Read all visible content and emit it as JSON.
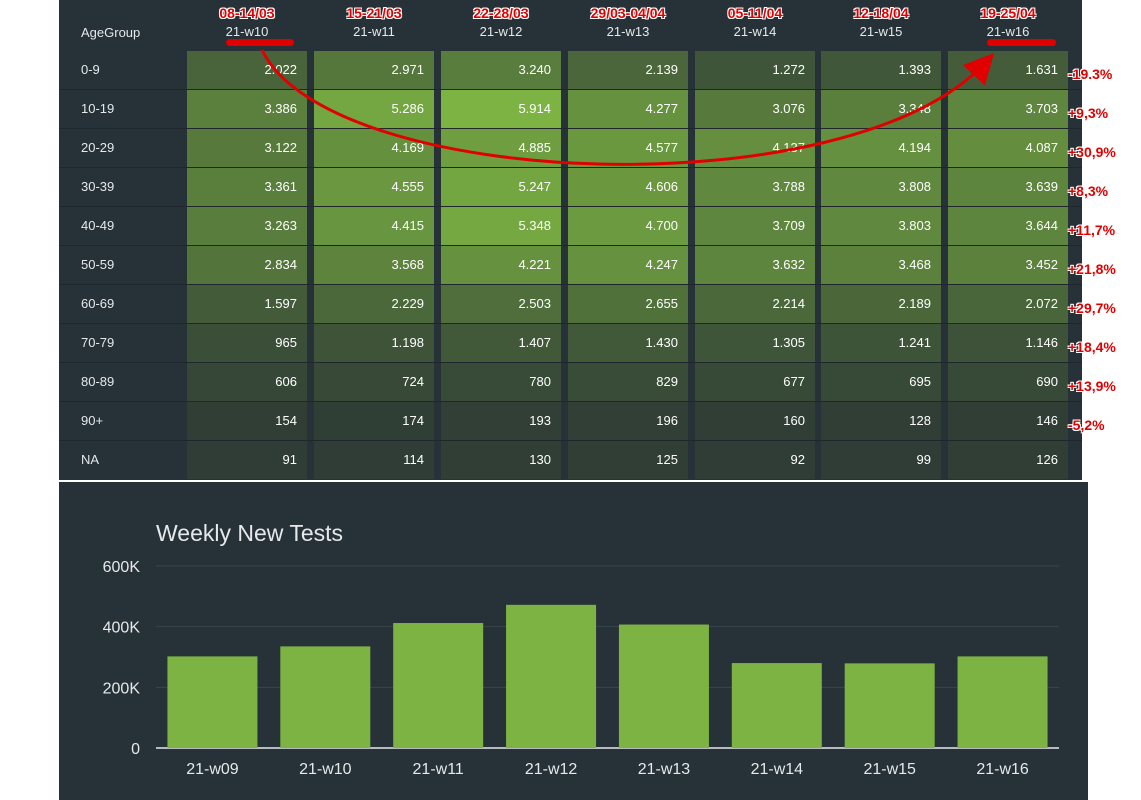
{
  "table": {
    "corner_label": "AgeGroup",
    "columns": [
      "21-w10",
      "21-w11",
      "21-w12",
      "21-w13",
      "21-w14",
      "21-w15",
      "21-w16"
    ],
    "date_annotations": [
      "08-14/03",
      "15-21/03",
      "22-28/03",
      "29/03-04/04",
      "05-11/04",
      "12-18/04",
      "19-25/04"
    ],
    "rows": [
      {
        "label": "0-9",
        "cells": [
          "2.022",
          "2.971",
          "3.240",
          "2.139",
          "1.272",
          "1.393",
          "1.631"
        ],
        "values": [
          2022,
          2971,
          3240,
          2139,
          1272,
          1393,
          1631
        ],
        "change": "-19.3%"
      },
      {
        "label": "10-19",
        "cells": [
          "3.386",
          "5.286",
          "5.914",
          "4.277",
          "3.076",
          "3.348",
          "3.703"
        ],
        "values": [
          3386,
          5286,
          5914,
          4277,
          3076,
          3348,
          3703
        ],
        "change": "+9,3%"
      },
      {
        "label": "20-29",
        "cells": [
          "3.122",
          "4.169",
          "4.885",
          "4.577",
          "4.137",
          "4.194",
          "4.087"
        ],
        "values": [
          3122,
          4169,
          4885,
          4577,
          4137,
          4194,
          4087
        ],
        "change": "+30,9%"
      },
      {
        "label": "30-39",
        "cells": [
          "3.361",
          "4.555",
          "5.247",
          "4.606",
          "3.788",
          "3.808",
          "3.639"
        ],
        "values": [
          3361,
          4555,
          5247,
          4606,
          3788,
          3808,
          3639
        ],
        "change": "+8,3%"
      },
      {
        "label": "40-49",
        "cells": [
          "3.263",
          "4.415",
          "5.348",
          "4.700",
          "3.709",
          "3.803",
          "3.644"
        ],
        "values": [
          3263,
          4415,
          5348,
          4700,
          3709,
          3803,
          3644
        ],
        "change": "+11,7%"
      },
      {
        "label": "50-59",
        "cells": [
          "2.834",
          "3.568",
          "4.221",
          "4.247",
          "3.632",
          "3.468",
          "3.452"
        ],
        "values": [
          2834,
          3568,
          4221,
          4247,
          3632,
          3468,
          3452
        ],
        "change": "+21,8%"
      },
      {
        "label": "60-69",
        "cells": [
          "1.597",
          "2.229",
          "2.503",
          "2.655",
          "2.214",
          "2.189",
          "2.072"
        ],
        "values": [
          1597,
          2229,
          2503,
          2655,
          2214,
          2189,
          2072
        ],
        "change": "+29,7%"
      },
      {
        "label": "70-79",
        "cells": [
          "965",
          "1.198",
          "1.407",
          "1.430",
          "1.305",
          "1.241",
          "1.146"
        ],
        "values": [
          965,
          1198,
          1407,
          1430,
          1305,
          1241,
          1146
        ],
        "change": "+18,4%"
      },
      {
        "label": "80-89",
        "cells": [
          "606",
          "724",
          "780",
          "829",
          "677",
          "695",
          "690"
        ],
        "values": [
          606,
          724,
          780,
          829,
          677,
          695,
          690
        ],
        "change": "+13,9%"
      },
      {
        "label": "90+",
        "cells": [
          "154",
          "174",
          "193",
          "196",
          "160",
          "128",
          "146"
        ],
        "values": [
          154,
          174,
          193,
          196,
          160,
          128,
          146
        ],
        "change": "-5,2%"
      },
      {
        "label": "NA",
        "cells": [
          "91",
          "114",
          "130",
          "125",
          "92",
          "99",
          "126"
        ],
        "values": [
          91,
          114,
          130,
          125,
          92,
          99,
          126
        ],
        "change": ""
      }
    ]
  },
  "colors": {
    "panel_bg": "#273138",
    "bar": "#7cb342",
    "heat_low": "#2e3b36",
    "heat_high": "#7cb342",
    "annotation": "#e00000"
  },
  "chart_data": {
    "type": "bar",
    "title": "Weekly New Tests",
    "categories": [
      "21-w09",
      "21-w10",
      "21-w11",
      "21-w12",
      "21-w13",
      "21-w14",
      "21-w15",
      "21-w16"
    ],
    "values": [
      302000,
      335000,
      412000,
      472000,
      407000,
      280000,
      279000,
      302000
    ],
    "ylim": [
      0,
      600000
    ],
    "yticks": [
      0,
      200000,
      400000,
      600000
    ],
    "ytick_labels": [
      "0",
      "200K",
      "400K",
      "600K"
    ],
    "grid": true
  }
}
